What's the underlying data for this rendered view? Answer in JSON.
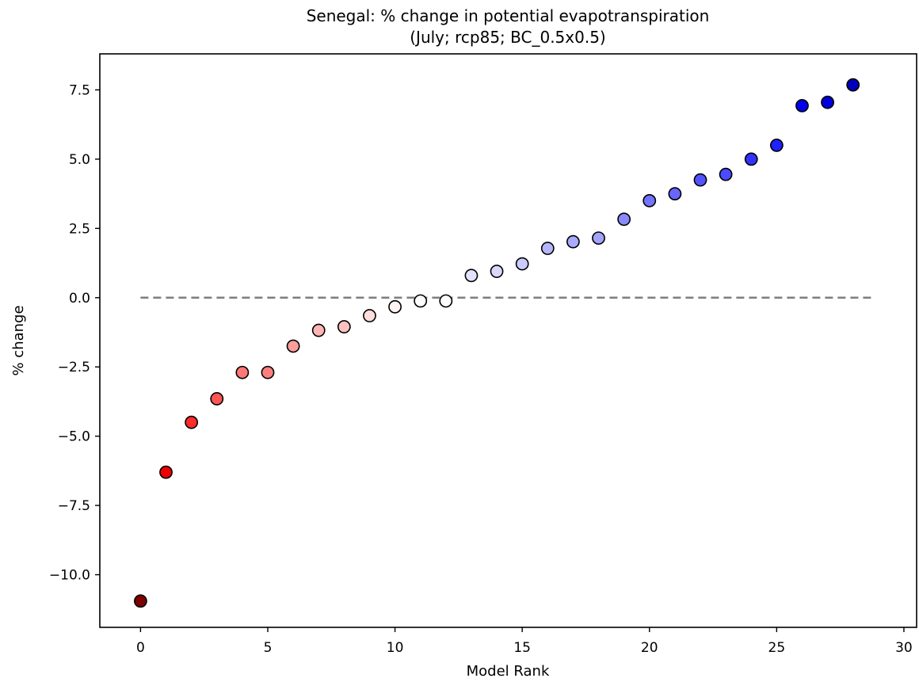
{
  "chart_data": {
    "type": "scatter",
    "title": "Senegal: % change in potential evapotranspiration",
    "subtitle": "(July; rcp85; BC_0.5x0.5)",
    "xlabel": "Model Rank",
    "ylabel": "% change",
    "xlim": [
      -1.6,
      30.5
    ],
    "ylim": [
      -11.9,
      8.8
    ],
    "xticks": [
      0,
      5,
      10,
      15,
      20,
      25,
      30
    ],
    "xtick_labels": [
      "0",
      "5",
      "10",
      "15",
      "20",
      "25",
      "30"
    ],
    "yticks": [
      -10.0,
      -7.5,
      -5.0,
      -2.5,
      0.0,
      2.5,
      5.0,
      7.5
    ],
    "ytick_labels": [
      "−10.0",
      "−7.5",
      "−5.0",
      "−2.5",
      "0.0",
      "2.5",
      "5.0",
      "7.5"
    ],
    "grid": false,
    "reference_line": {
      "y": 0.0,
      "x_range": [
        0,
        28.8
      ],
      "style": "dashed",
      "color": "#808080"
    },
    "points": [
      {
        "x": 0,
        "y": -10.95,
        "color": "#7f0000"
      },
      {
        "x": 1,
        "y": -6.3,
        "color": "#ee0000"
      },
      {
        "x": 2,
        "y": -4.5,
        "color": "#ff2a2a"
      },
      {
        "x": 3,
        "y": -3.65,
        "color": "#ff5555"
      },
      {
        "x": 4,
        "y": -2.7,
        "color": "#ff7777"
      },
      {
        "x": 5,
        "y": -2.7,
        "color": "#ff7f7f"
      },
      {
        "x": 6,
        "y": -1.75,
        "color": "#ff9d9d"
      },
      {
        "x": 7,
        "y": -1.18,
        "color": "#ffb5b5"
      },
      {
        "x": 8,
        "y": -1.05,
        "color": "#ffc0c0"
      },
      {
        "x": 9,
        "y": -0.65,
        "color": "#ffdddd"
      },
      {
        "x": 10,
        "y": -0.33,
        "color": "#fff3f3"
      },
      {
        "x": 11,
        "y": -0.12,
        "color": "#ffffff"
      },
      {
        "x": 12,
        "y": -0.12,
        "color": "#ffffff"
      },
      {
        "x": 13,
        "y": 0.8,
        "color": "#e3e3ff"
      },
      {
        "x": 14,
        "y": 0.95,
        "color": "#d8d8ff"
      },
      {
        "x": 15,
        "y": 1.22,
        "color": "#cbcbff"
      },
      {
        "x": 16,
        "y": 1.78,
        "color": "#b5b5ff"
      },
      {
        "x": 17,
        "y": 2.02,
        "color": "#a9a9ff"
      },
      {
        "x": 18,
        "y": 2.15,
        "color": "#a3a3ff"
      },
      {
        "x": 19,
        "y": 2.83,
        "color": "#8989ff"
      },
      {
        "x": 20,
        "y": 3.5,
        "color": "#7373ff"
      },
      {
        "x": 21,
        "y": 3.75,
        "color": "#6767ff"
      },
      {
        "x": 22,
        "y": 4.25,
        "color": "#5353ff"
      },
      {
        "x": 23,
        "y": 4.45,
        "color": "#4b4bff"
      },
      {
        "x": 24,
        "y": 5.0,
        "color": "#3333ff"
      },
      {
        "x": 25,
        "y": 5.5,
        "color": "#2121ff"
      },
      {
        "x": 26,
        "y": 6.93,
        "color": "#0000ee"
      },
      {
        "x": 27,
        "y": 7.05,
        "color": "#0000dd"
      },
      {
        "x": 28,
        "y": 7.68,
        "color": "#0000bb"
      }
    ]
  }
}
